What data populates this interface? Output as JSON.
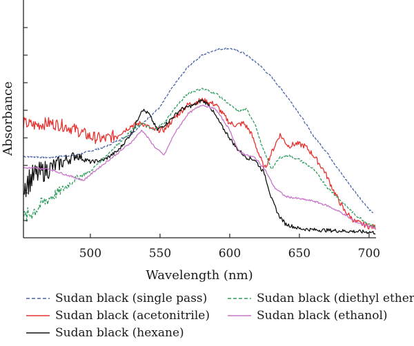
{
  "chart_data": {
    "type": "line",
    "xlabel": "Wavelength (nm)",
    "ylabel": "Absorbance",
    "xlim": [
      452,
      705
    ],
    "ylim": [
      0,
      1
    ],
    "x_ticks": [
      "500",
      "550",
      "600",
      "650",
      "700"
    ],
    "y_ticks_labeled": false,
    "grid": false,
    "legend_position": "bottom",
    "series": [
      {
        "name": "Sudan black (single pass)",
        "color": "#4a63a8",
        "dash": "dashed",
        "noise": 0.004,
        "points": [
          [
            452,
            0.355
          ],
          [
            470,
            0.35
          ],
          [
            490,
            0.36
          ],
          [
            510,
            0.395
          ],
          [
            530,
            0.455
          ],
          [
            550,
            0.57
          ],
          [
            560,
            0.665
          ],
          [
            570,
            0.745
          ],
          [
            580,
            0.795
          ],
          [
            590,
            0.82
          ],
          [
            600,
            0.825
          ],
          [
            610,
            0.805
          ],
          [
            620,
            0.76
          ],
          [
            630,
            0.7
          ],
          [
            640,
            0.625
          ],
          [
            650,
            0.54
          ],
          [
            660,
            0.445
          ],
          [
            670,
            0.37
          ],
          [
            680,
            0.28
          ],
          [
            690,
            0.2
          ],
          [
            700,
            0.125
          ],
          [
            703,
            0.105
          ]
        ]
      },
      {
        "name": "Sudan black (acetonitrile)",
        "color": "#e8302e",
        "dash": "solid",
        "noise": 0.012,
        "points": [
          [
            452,
            0.5
          ],
          [
            460,
            0.49
          ],
          [
            470,
            0.5
          ],
          [
            480,
            0.49
          ],
          [
            490,
            0.47
          ],
          [
            500,
            0.44
          ],
          [
            510,
            0.43
          ],
          [
            520,
            0.45
          ],
          [
            530,
            0.49
          ],
          [
            537,
            0.5
          ],
          [
            545,
            0.47
          ],
          [
            553,
            0.47
          ],
          [
            560,
            0.52
          ],
          [
            570,
            0.58
          ],
          [
            580,
            0.6
          ],
          [
            590,
            0.58
          ],
          [
            600,
            0.5
          ],
          [
            605,
            0.49
          ],
          [
            610,
            0.5
          ],
          [
            615,
            0.46
          ],
          [
            620,
            0.38
          ],
          [
            625,
            0.3
          ],
          [
            630,
            0.37
          ],
          [
            636,
            0.45
          ],
          [
            642,
            0.4
          ],
          [
            648,
            0.41
          ],
          [
            654,
            0.4
          ],
          [
            660,
            0.36
          ],
          [
            668,
            0.29
          ],
          [
            675,
            0.2
          ],
          [
            682,
            0.12
          ],
          [
            690,
            0.07
          ],
          [
            700,
            0.05
          ],
          [
            705,
            0.045
          ]
        ]
      },
      {
        "name": "Sudan black (hexane)",
        "color": "#111111",
        "dash": "solid",
        "noise": 0.008,
        "points": [
          [
            452,
            0.23
          ],
          [
            460,
            0.27
          ],
          [
            470,
            0.3
          ],
          [
            480,
            0.33
          ],
          [
            490,
            0.36
          ],
          [
            500,
            0.33
          ],
          [
            510,
            0.34
          ],
          [
            520,
            0.38
          ],
          [
            530,
            0.46
          ],
          [
            537,
            0.56
          ],
          [
            542,
            0.54
          ],
          [
            548,
            0.47
          ],
          [
            555,
            0.5
          ],
          [
            565,
            0.56
          ],
          [
            575,
            0.58
          ],
          [
            580,
            0.6
          ],
          [
            585,
            0.58
          ],
          [
            595,
            0.48
          ],
          [
            605,
            0.39
          ],
          [
            612,
            0.35
          ],
          [
            618,
            0.34
          ],
          [
            625,
            0.28
          ],
          [
            630,
            0.17
          ],
          [
            635,
            0.1
          ],
          [
            640,
            0.06
          ],
          [
            650,
            0.04
          ],
          [
            660,
            0.035
          ],
          [
            680,
            0.03
          ],
          [
            700,
            0.025
          ],
          [
            705,
            0.022
          ]
        ]
      },
      {
        "name": "Sudan black (diethyl ether)",
        "color": "#2f9e5e",
        "dash": "dashed",
        "noise": 0.005,
        "points": [
          [
            452,
            0.08
          ],
          [
            460,
            0.12
          ],
          [
            470,
            0.17
          ],
          [
            480,
            0.21
          ],
          [
            490,
            0.26
          ],
          [
            500,
            0.29
          ],
          [
            510,
            0.35
          ],
          [
            520,
            0.41
          ],
          [
            530,
            0.47
          ],
          [
            537,
            0.5
          ],
          [
            545,
            0.47
          ],
          [
            553,
            0.5
          ],
          [
            560,
            0.56
          ],
          [
            570,
            0.63
          ],
          [
            580,
            0.65
          ],
          [
            590,
            0.63
          ],
          [
            600,
            0.58
          ],
          [
            606,
            0.55
          ],
          [
            612,
            0.56
          ],
          [
            618,
            0.5
          ],
          [
            623,
            0.4
          ],
          [
            630,
            0.3
          ],
          [
            636,
            0.35
          ],
          [
            642,
            0.36
          ],
          [
            650,
            0.34
          ],
          [
            660,
            0.3
          ],
          [
            670,
            0.22
          ],
          [
            680,
            0.16
          ],
          [
            690,
            0.1
          ],
          [
            700,
            0.06
          ],
          [
            705,
            0.05
          ]
        ]
      },
      {
        "name": "Sudan black (ethanol)",
        "color": "#c774c9",
        "dash": "solid",
        "noise": 0.004,
        "points": [
          [
            452,
            0.305
          ],
          [
            470,
            0.3
          ],
          [
            485,
            0.27
          ],
          [
            495,
            0.25
          ],
          [
            505,
            0.3
          ],
          [
            520,
            0.37
          ],
          [
            530,
            0.42
          ],
          [
            537,
            0.47
          ],
          [
            542,
            0.43
          ],
          [
            547,
            0.39
          ],
          [
            553,
            0.36
          ],
          [
            560,
            0.45
          ],
          [
            570,
            0.54
          ],
          [
            580,
            0.58
          ],
          [
            590,
            0.56
          ],
          [
            600,
            0.47
          ],
          [
            606,
            0.38
          ],
          [
            612,
            0.36
          ],
          [
            618,
            0.35
          ],
          [
            625,
            0.3
          ],
          [
            632,
            0.22
          ],
          [
            640,
            0.18
          ],
          [
            650,
            0.17
          ],
          [
            660,
            0.16
          ],
          [
            670,
            0.14
          ],
          [
            680,
            0.11
          ],
          [
            690,
            0.07
          ],
          [
            700,
            0.05
          ],
          [
            705,
            0.04
          ]
        ]
      }
    ]
  }
}
